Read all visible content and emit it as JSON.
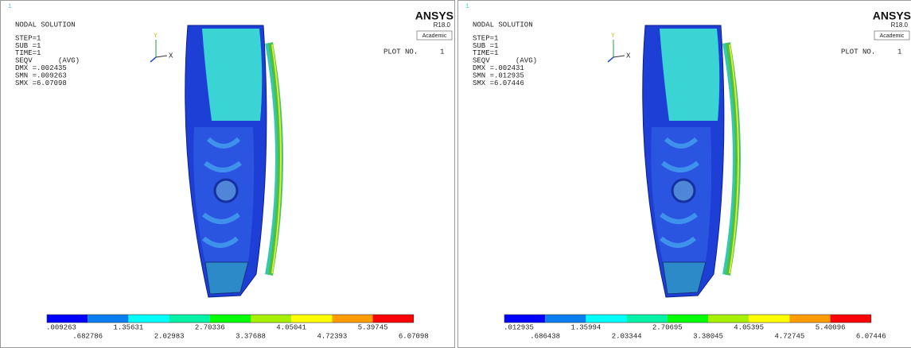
{
  "panels": [
    {
      "corner_number": "1",
      "title": "NODAL SOLUTION",
      "info": [
        "STEP=1",
        "SUB =1",
        "TIME=1",
        "SEQV      (AVG)",
        "DMX =.002435",
        "SMN =.009263",
        "SMX =6.07098"
      ],
      "axis_labels": {
        "y": "Y",
        "x": "X"
      },
      "logo": {
        "name": "ANSYS",
        "release": "R18.0",
        "license": "Academic"
      },
      "plot_number_label": "PLOT NO.",
      "plot_number": "1",
      "legend_labels": [
        ".009263",
        ".682786",
        "1.35631",
        "2.02983",
        "2.70336",
        "3.37688",
        "4.05041",
        "4.72393",
        "5.39745",
        "6.07098"
      ]
    },
    {
      "corner_number": "1",
      "title": "NODAL SOLUTION",
      "info": [
        "STEP=1",
        "SUB =1",
        "TIME=1",
        "SEQV      (AVG)",
        "DMX =.002431",
        "SMN =.012935",
        "SMX =6.07446"
      ],
      "axis_labels": {
        "y": "Y",
        "x": "X"
      },
      "logo": {
        "name": "ANSYS",
        "release": "R18.0",
        "license": "Academic"
      },
      "plot_number_label": "PLOT NO.",
      "plot_number": "1",
      "legend_labels": [
        ".012935",
        ".686438",
        "1.35994",
        "2.03344",
        "2.70695",
        "3.38045",
        "4.05395",
        "4.72745",
        "5.40096",
        "6.07446"
      ]
    }
  ]
}
